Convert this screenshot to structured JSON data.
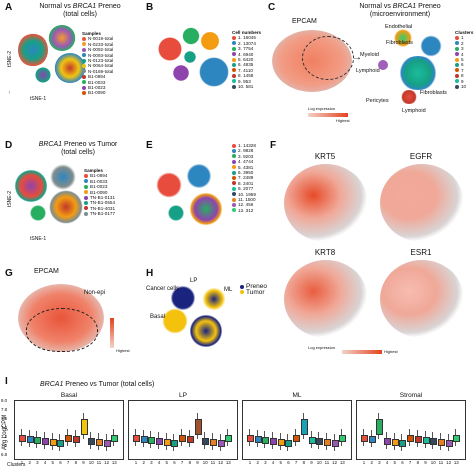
{
  "panels": {
    "A": {
      "letter": "A",
      "title_prefix": "Normal vs ",
      "title_gene": "BRCA1",
      "title_suffix": " Preneo",
      "subtitle": "(total cells)",
      "legend_header": "Samples",
      "samples": [
        "N-0019-total",
        "N-0233-total",
        "N-0092-total",
        "N-0093-total",
        "N-0123-total",
        "N-0064-total",
        "N-0169-total",
        "B1-0894",
        "B1-0033",
        "B1-0023",
        "B1-0090"
      ],
      "sample_colors": [
        "#e8553a",
        "#f39c2b",
        "#9b59b6",
        "#2e86c1",
        "#16a085",
        "#f1c40f",
        "#7f8c8d",
        "#c0392b",
        "#27ae60",
        "#8e44ad",
        "#d35400"
      ],
      "x_label": "tSNE-1",
      "y_label": "tSNE-2"
    },
    "B": {
      "letter": "B",
      "legend_header": "Cell numbers",
      "clusters": [
        "1. 16045",
        "2. 13074",
        "3. 7754",
        "4. 6940",
        "5. 6420",
        "6. 4835",
        "7. 4110",
        "8. 1458",
        "9. 953",
        "10. 581"
      ],
      "cluster_colors": [
        "#e74c3c",
        "#2e86c1",
        "#27ae60",
        "#8e44ad",
        "#f39c12",
        "#16a085",
        "#d35400",
        "#c0392b",
        "#1abc9c",
        "#34495e"
      ]
    },
    "C": {
      "letter": "C",
      "epcam": "EPCAM",
      "title_prefix": "Normal vs ",
      "title_gene": "BRCA1",
      "title_suffix": " Preneo",
      "subtitle": "(microenvironment)",
      "labels": [
        "Endothelial",
        "Fibroblasts",
        "Myeloid",
        "Lymphoid",
        "Pericytes",
        "Fibroblasts",
        "Lymphoid"
      ],
      "legend_header": "Clusters",
      "legend_numbers": [
        "1",
        "2",
        "3",
        "4",
        "5",
        "6",
        "7",
        "8",
        "9",
        "10"
      ],
      "scale_label": "Log expression",
      "scale_high": "Highest"
    },
    "D": {
      "letter": "D",
      "title_gene": "BRCA1",
      "title_suffix": " Preneo vs Tumor",
      "subtitle": "(total cells)",
      "legend_header": "Samples",
      "samples": [
        "B1-0894",
        "B1-0033",
        "B1-0023",
        "B1-0090",
        "TN-B1-0131",
        "TN-B1-0554",
        "TN-B1-4031",
        "TN-B1-0177"
      ],
      "sample_colors": [
        "#e74c3c",
        "#2e86c1",
        "#27ae60",
        "#f39c12",
        "#8e44ad",
        "#16a085",
        "#c0392b",
        "#7f8c8d"
      ],
      "x_label": "tSNE-1",
      "y_label": "tSNE-2"
    },
    "E": {
      "letter": "E",
      "clusters": [
        "1. 14328",
        "2. 9828",
        "3. 9203",
        "4. 4744",
        "5. 4381",
        "6. 3950",
        "7. 2489",
        "8. 2401",
        "9. 2077",
        "10. 1959",
        "11. 1500",
        "12. 456",
        "13. 312"
      ],
      "cluster_colors": [
        "#e74c3c",
        "#2e86c1",
        "#27ae60",
        "#8e44ad",
        "#f39c12",
        "#16a085",
        "#d35400",
        "#c0392b",
        "#1abc9c",
        "#34495e",
        "#e67e22",
        "#9b59b6",
        "#2ecc71"
      ]
    },
    "F": {
      "letter": "F",
      "genes": [
        "KRT5",
        "EGFR",
        "KRT8",
        "ESR1"
      ],
      "scale_label": "Log expression",
      "scale_high": "Highest"
    },
    "G": {
      "letter": "G",
      "gene": "EPCAM",
      "non_epi": "Non-epi",
      "scale_high": "Highest"
    },
    "H": {
      "letter": "H",
      "labels": [
        "LP",
        "ML",
        "Cancer cells",
        "Basal"
      ],
      "legend": [
        "Preneo",
        "Tumor"
      ],
      "legend_colors": [
        "#1a237e",
        "#f4c20d"
      ]
    },
    "I": {
      "letter": "I",
      "title_gene": "BRCA1",
      "title_suffix": " Preneo vs Tumor (total cells)",
      "y_label": "Avg LogCPM",
      "x_label": "Clusters",
      "boxes": [
        "Basal",
        "LP",
        "ML",
        "Stromal"
      ],
      "y_ticks": [
        "8.0",
        "7.8",
        "7.6",
        "7.4",
        "7.2",
        "7.0",
        "6.8"
      ],
      "cluster_ticks": [
        "1",
        "2",
        "3",
        "4",
        "5",
        "6",
        "7",
        "8",
        "9",
        "10",
        "11",
        "12",
        "13"
      ],
      "highlight": {
        "Basal": 9,
        "LP": 9,
        "ML": 8,
        "Stromal": 3
      },
      "highlight_colors": {
        "Basal": "#f1c40f",
        "LP": "#a0522d",
        "ML": "#17a2b8",
        "Stromal": "#27ae60"
      }
    }
  }
}
